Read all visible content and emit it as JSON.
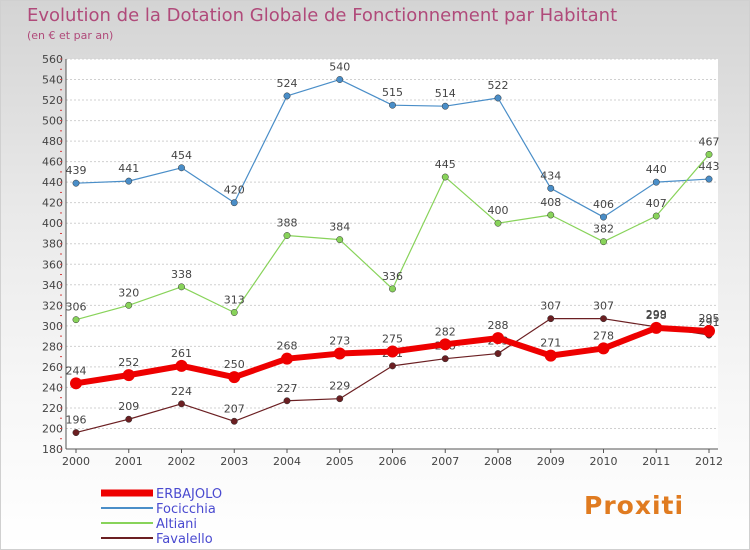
{
  "header": {
    "title": "Evolution de la Dotation Globale de Fonctionnement par Habitant",
    "subtitle": "(en € et par an)"
  },
  "logo": {
    "text": "Proxiti"
  },
  "colors": {
    "erbajolo": "#ee0000",
    "focicchia": "#4a8ec8",
    "altiani": "#88d35a",
    "favalello": "#6b1f22",
    "axis": "#555555",
    "grid": "#d0d0d0",
    "legend_text": "#4a4ad0"
  },
  "chart_data": {
    "type": "line",
    "title": "Evolution de la Dotation Globale de Fonctionnement par Habitant",
    "subtitle": "(en € et par an)",
    "x": [
      "2000",
      "2001",
      "2002",
      "2003",
      "2004",
      "2005",
      "2006",
      "2007",
      "2008",
      "2009",
      "2010",
      "2011",
      "2012"
    ],
    "ylim": [
      180,
      560
    ],
    "yticks": [
      180,
      200,
      220,
      240,
      260,
      280,
      300,
      320,
      340,
      360,
      380,
      400,
      420,
      440,
      460,
      480,
      500,
      520,
      540,
      560
    ],
    "grid": "horizontal",
    "legend_position": "bottom-left",
    "series": [
      {
        "name": "Focicchia",
        "values": [
          439,
          441,
          454,
          420,
          524,
          540,
          515,
          514,
          522,
          434,
          406,
          440,
          443
        ]
      },
      {
        "name": "Altiani",
        "values": [
          306,
          320,
          338,
          313,
          388,
          384,
          336,
          445,
          400,
          408,
          382,
          407,
          467
        ]
      },
      {
        "name": "Favalello",
        "values": [
          196,
          209,
          224,
          207,
          227,
          229,
          261,
          268,
          273,
          307,
          307,
          299,
          291
        ]
      },
      {
        "name": "ERBAJOLO",
        "values": [
          244,
          252,
          261,
          250,
          268,
          273,
          275,
          282,
          288,
          271,
          278,
          298,
          295
        ]
      }
    ],
    "legend": [
      "ERBAJOLO",
      "Focicchia",
      "Altiani",
      "Favalello"
    ]
  }
}
